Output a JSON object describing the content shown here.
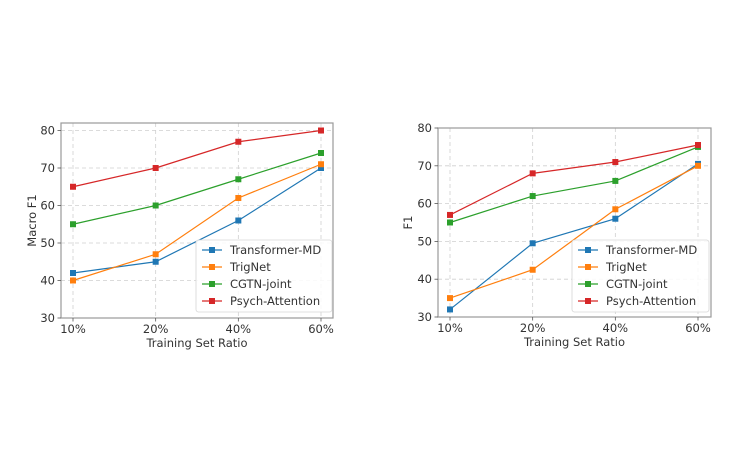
{
  "chart_data": [
    {
      "type": "line",
      "title": "",
      "xlabel": "Training Set Ratio",
      "ylabel": "Macro F1",
      "categories": [
        "10%",
        "20%",
        "40%",
        "60%"
      ],
      "ylim": [
        30,
        82
      ],
      "yticks": [
        30,
        40,
        50,
        60,
        70,
        80
      ],
      "grid": true,
      "legend_position": "lower-right",
      "series": [
        {
          "name": "Transformer-MD",
          "color": "#1f77b4",
          "values": [
            42,
            45,
            56,
            70
          ]
        },
        {
          "name": "TrigNet",
          "color": "#ff7f0e",
          "values": [
            40,
            47,
            62,
            71
          ]
        },
        {
          "name": "CGTN-joint",
          "color": "#2ca02c",
          "values": [
            55,
            60,
            67,
            74
          ]
        },
        {
          "name": "Psych-Attention",
          "color": "#d62728",
          "values": [
            65,
            70,
            77,
            80
          ]
        }
      ]
    },
    {
      "type": "line",
      "title": "",
      "xlabel": "Training Set Ratio",
      "ylabel": "F1",
      "categories": [
        "10%",
        "20%",
        "40%",
        "60%"
      ],
      "ylim": [
        30,
        80
      ],
      "yticks": [
        30,
        40,
        50,
        60,
        70,
        80
      ],
      "grid": true,
      "legend_position": "lower-right",
      "series": [
        {
          "name": "Transformer-MD",
          "color": "#1f77b4",
          "values": [
            32,
            49.5,
            56,
            70.5
          ]
        },
        {
          "name": "TrigNet",
          "color": "#ff7f0e",
          "values": [
            35,
            42.5,
            58.5,
            70
          ]
        },
        {
          "name": "CGTN-joint",
          "color": "#2ca02c",
          "values": [
            55,
            62,
            66,
            75
          ]
        },
        {
          "name": "Psych-Attention",
          "color": "#d62728",
          "values": [
            57,
            68,
            71,
            75.5
          ]
        }
      ]
    }
  ]
}
